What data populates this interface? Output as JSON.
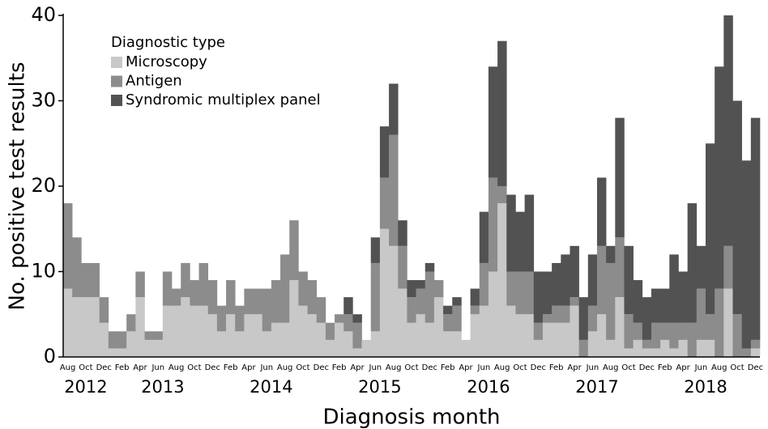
{
  "chart_data": {
    "type": "stacked-bar",
    "x_label": "Diagnosis month",
    "y_label": "No. positive test results",
    "legend_title": "Diagnostic type",
    "legend": "top-left",
    "ylim": [
      0,
      40
    ],
    "yticks": [
      0,
      10,
      20,
      30,
      40
    ],
    "categories": [
      "Aug",
      null,
      "Oct",
      null,
      "Dec",
      null,
      "Feb",
      null,
      "Apr",
      null,
      "Jun",
      null,
      "Aug",
      null,
      "Oct",
      null,
      "Dec",
      null,
      "Feb",
      null,
      "Apr",
      null,
      "Jun",
      null,
      "Aug",
      null,
      "Oct",
      null,
      "Dec",
      null,
      "Feb",
      null,
      "Apr",
      null,
      "Jun",
      null,
      "Aug",
      null,
      "Oct",
      null,
      "Dec",
      null,
      "Feb",
      null,
      "Apr",
      null,
      "Jun",
      null,
      "Aug",
      null,
      "Oct",
      null,
      "Dec",
      null,
      "Feb",
      null,
      "Apr",
      null,
      "Jun",
      null,
      "Aug",
      null,
      "Oct",
      null,
      "Dec",
      null,
      "Feb",
      null,
      "Apr",
      null,
      "Jun",
      null,
      "Aug",
      null,
      "Oct",
      null,
      "Dec"
    ],
    "years": [
      {
        "label": "2012",
        "months": 5
      },
      {
        "label": "2013",
        "months": 12
      },
      {
        "label": "2014",
        "months": 12
      },
      {
        "label": "2015",
        "months": 12
      },
      {
        "label": "2016",
        "months": 12
      },
      {
        "label": "2017",
        "months": 12
      },
      {
        "label": "2018",
        "months": 12
      }
    ],
    "series": [
      {
        "name": "Microscopy",
        "color": "#c8c8c8",
        "values": [
          8,
          7,
          7,
          7,
          4,
          1,
          1,
          3,
          7,
          2,
          2,
          6,
          6,
          7,
          6,
          6,
          5,
          3,
          5,
          3,
          5,
          5,
          3,
          4,
          4,
          9,
          6,
          5,
          4,
          2,
          4,
          3,
          1,
          2,
          3,
          15,
          13,
          8,
          4,
          5,
          4,
          7,
          3,
          3,
          2,
          5,
          6,
          10,
          18,
          6,
          5,
          5,
          2,
          4,
          4,
          4,
          6,
          0,
          3,
          5,
          2,
          7,
          1,
          2,
          1,
          1,
          2,
          1,
          2,
          0,
          2,
          2,
          0,
          8,
          0,
          0,
          1
        ]
      },
      {
        "name": "Antigen",
        "color": "#8c8c8c",
        "values": [
          10,
          7,
          4,
          4,
          3,
          2,
          2,
          2,
          3,
          1,
          1,
          4,
          2,
          4,
          3,
          5,
          4,
          3,
          4,
          3,
          3,
          3,
          5,
          5,
          8,
          7,
          4,
          4,
          3,
          2,
          1,
          2,
          3,
          0,
          8,
          6,
          13,
          5,
          3,
          3,
          6,
          2,
          2,
          3,
          0,
          1,
          5,
          11,
          2,
          4,
          5,
          5,
          2,
          1,
          2,
          2,
          1,
          2,
          3,
          8,
          9,
          7,
          4,
          2,
          1,
          3,
          2,
          3,
          2,
          4,
          6,
          3,
          8,
          5,
          5,
          1,
          1
        ]
      },
      {
        "name": "Syndromic multiplex panel",
        "color": "#525252",
        "values": [
          0,
          0,
          0,
          0,
          0,
          0,
          0,
          0,
          0,
          0,
          0,
          0,
          0,
          0,
          0,
          0,
          0,
          0,
          0,
          0,
          0,
          0,
          0,
          0,
          0,
          0,
          0,
          0,
          0,
          0,
          0,
          2,
          1,
          0,
          3,
          6,
          6,
          3,
          2,
          1,
          1,
          0,
          1,
          1,
          0,
          2,
          6,
          13,
          17,
          9,
          7,
          9,
          6,
          5,
          5,
          6,
          6,
          5,
          6,
          8,
          2,
          14,
          8,
          5,
          5,
          4,
          4,
          8,
          6,
          14,
          5,
          20,
          26,
          27,
          25,
          22,
          26
        ]
      }
    ]
  }
}
